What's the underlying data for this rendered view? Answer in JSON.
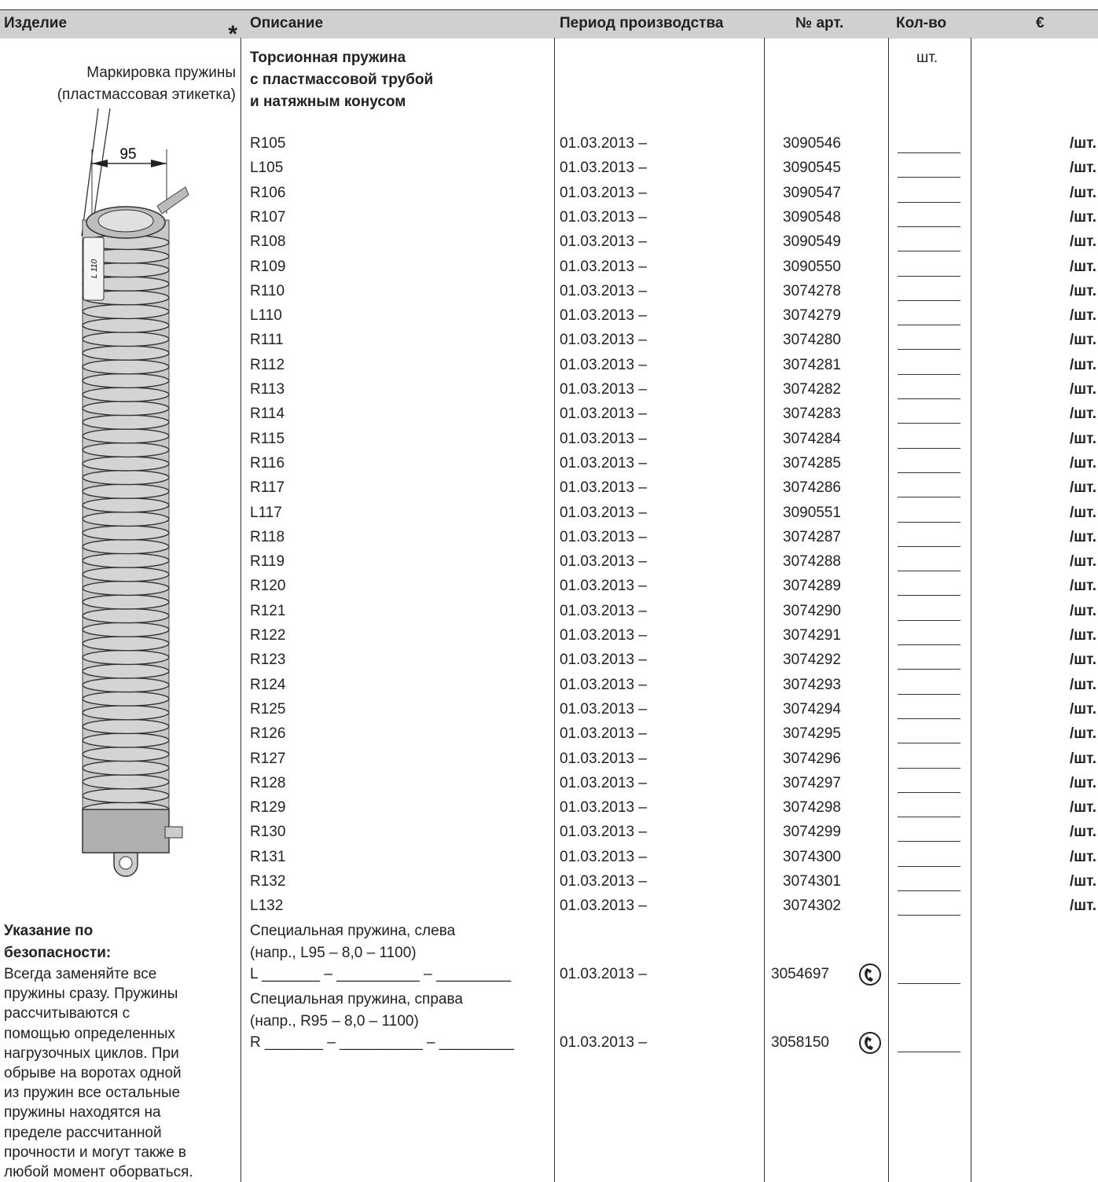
{
  "header": [
    "Изделие",
    "Описание",
    "Период производства",
    "№ арт.",
    "Кол-во",
    "€"
  ],
  "product": {
    "asterisk": "*",
    "marking": [
      "Маркировка пружины",
      "(пластмассовая этикетка)"
    ],
    "dimension": "95",
    "tag": "L 110",
    "safety_title": [
      "Указание по",
      "безопасности:"
    ],
    "safety_text": [
      "Всегда заменяйте все",
      "пружины сразу. Пружины",
      "рассчитываются с",
      "помощью определенных",
      "нагрузочных циклов. При",
      "обрыве на воротах одной",
      "из пружин все остальные",
      "пружины находятся на",
      "пределе рассчитанной",
      "прочности и могут также в",
      "любой момент оборваться."
    ]
  },
  "description_title": [
    "Торсионная пружина",
    "с пластмассовой трубой",
    "и натяжным конусом"
  ],
  "unit": "шт.",
  "rows": [
    {
      "code": "R105",
      "period": "01.03.2013 –",
      "article": "3090546",
      "price": "/шт."
    },
    {
      "code": "L105",
      "period": "01.03.2013 –",
      "article": "3090545",
      "price": "/шт."
    },
    {
      "code": "R106",
      "period": "01.03.2013 –",
      "article": "3090547",
      "price": "/шт."
    },
    {
      "code": "R107",
      "period": "01.03.2013 –",
      "article": "3090548",
      "price": "/шт."
    },
    {
      "code": "R108",
      "period": "01.03.2013 –",
      "article": "3090549",
      "price": "/шт."
    },
    {
      "code": "R109",
      "period": "01.03.2013 –",
      "article": "3090550",
      "price": "/шт."
    },
    {
      "code": "R110",
      "period": "01.03.2013 –",
      "article": "3074278",
      "price": "/шт."
    },
    {
      "code": "L110",
      "period": "01.03.2013 –",
      "article": "3074279",
      "price": "/шт."
    },
    {
      "code": "R111",
      "period": "01.03.2013 –",
      "article": "3074280",
      "price": "/шт."
    },
    {
      "code": "R112",
      "period": "01.03.2013 –",
      "article": "3074281",
      "price": "/шт."
    },
    {
      "code": "R113",
      "period": "01.03.2013 –",
      "article": "3074282",
      "price": "/шт."
    },
    {
      "code": "R114",
      "period": "01.03.2013 –",
      "article": "3074283",
      "price": "/шт."
    },
    {
      "code": "R115",
      "period": "01.03.2013 –",
      "article": "3074284",
      "price": "/шт."
    },
    {
      "code": "R116",
      "period": "01.03.2013 –",
      "article": "3074285",
      "price": "/шт."
    },
    {
      "code": "R117",
      "period": "01.03.2013 –",
      "article": "3074286",
      "price": "/шт."
    },
    {
      "code": "L117",
      "period": "01.03.2013 –",
      "article": "3090551",
      "price": "/шт."
    },
    {
      "code": "R118",
      "period": "01.03.2013 –",
      "article": "3074287",
      "price": "/шт."
    },
    {
      "code": "R119",
      "period": "01.03.2013 –",
      "article": "3074288",
      "price": "/шт."
    },
    {
      "code": "R120",
      "period": "01.03.2013 –",
      "article": "3074289",
      "price": "/шт."
    },
    {
      "code": "R121",
      "period": "01.03.2013 –",
      "article": "3074290",
      "price": "/шт."
    },
    {
      "code": "R122",
      "period": "01.03.2013 –",
      "article": "3074291",
      "price": "/шт."
    },
    {
      "code": "R123",
      "period": "01.03.2013 –",
      "article": "3074292",
      "price": "/шт."
    },
    {
      "code": "R124",
      "period": "01.03.2013 –",
      "article": "3074293",
      "price": "/шт."
    },
    {
      "code": "R125",
      "period": "01.03.2013 –",
      "article": "3074294",
      "price": "/шт."
    },
    {
      "code": "R126",
      "period": "01.03.2013 –",
      "article": "3074295",
      "price": "/шт."
    },
    {
      "code": "R127",
      "period": "01.03.2013 –",
      "article": "3074296",
      "price": "/шт."
    },
    {
      "code": "R128",
      "period": "01.03.2013 –",
      "article": "3074297",
      "price": "/шт."
    },
    {
      "code": "R129",
      "period": "01.03.2013 –",
      "article": "3074298",
      "price": "/шт."
    },
    {
      "code": "R130",
      "period": "01.03.2013 –",
      "article": "3074299",
      "price": "/шт."
    },
    {
      "code": "R131",
      "period": "01.03.2013 –",
      "article": "3074300",
      "price": "/шт."
    },
    {
      "code": "R132",
      "period": "01.03.2013 –",
      "article": "3074301",
      "price": "/шт."
    },
    {
      "code": "L132",
      "period": "01.03.2013 –",
      "article": "3074302",
      "price": "/шт."
    }
  ],
  "special": [
    {
      "lines": [
        "Специальная пружина, слева",
        "(напр., L95 – 8,0 – 1100)",
        "L _______ – __________ – _________"
      ],
      "period": "01.03.2013 –",
      "article": "3054697"
    },
    {
      "lines": [
        "Специальная пружина, справа",
        "(напр., R95 – 8,0 – 1100)",
        "R _______ – __________ – _________"
      ],
      "period": "01.03.2013 –",
      "article": "3058150"
    }
  ]
}
